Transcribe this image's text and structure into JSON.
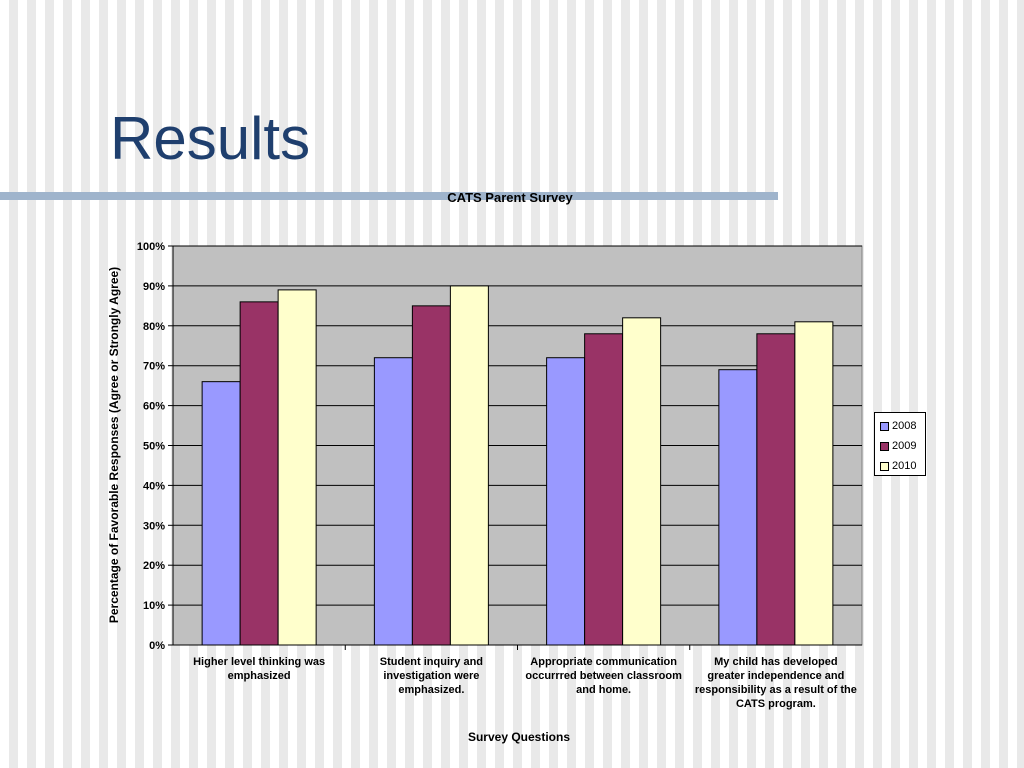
{
  "slide": {
    "title": "Results"
  },
  "chart_data": {
    "type": "bar",
    "title": "CATS Parent Survey",
    "xlabel": "Survey Questions",
    "ylabel": "Percentage of Favorable Responses (Agree or Strongly Agree)",
    "ylim": [
      0,
      100
    ],
    "yticks": [
      "0%",
      "10%",
      "20%",
      "30%",
      "40%",
      "50%",
      "60%",
      "70%",
      "80%",
      "90%",
      "100%"
    ],
    "grid": true,
    "legend_position": "right",
    "categories": [
      [
        "Higher level thinking was",
        "emphasized"
      ],
      [
        "Student inquiry and",
        "investigation were",
        "emphasized."
      ],
      [
        "Appropriate communication",
        "occurrred between classroom",
        "and home."
      ],
      [
        "My child has developed",
        "greater independence and",
        "responsibility as a result of the",
        "CATS program."
      ]
    ],
    "series": [
      {
        "name": "2008",
        "color": "#9999ff",
        "values": [
          66,
          72,
          72,
          69
        ]
      },
      {
        "name": "2009",
        "color": "#993366",
        "values": [
          86,
          85,
          78,
          78
        ]
      },
      {
        "name": "2010",
        "color": "#ffffcc",
        "values": [
          89,
          90,
          82,
          81
        ]
      }
    ],
    "plot_background": "#c0c0c0"
  }
}
